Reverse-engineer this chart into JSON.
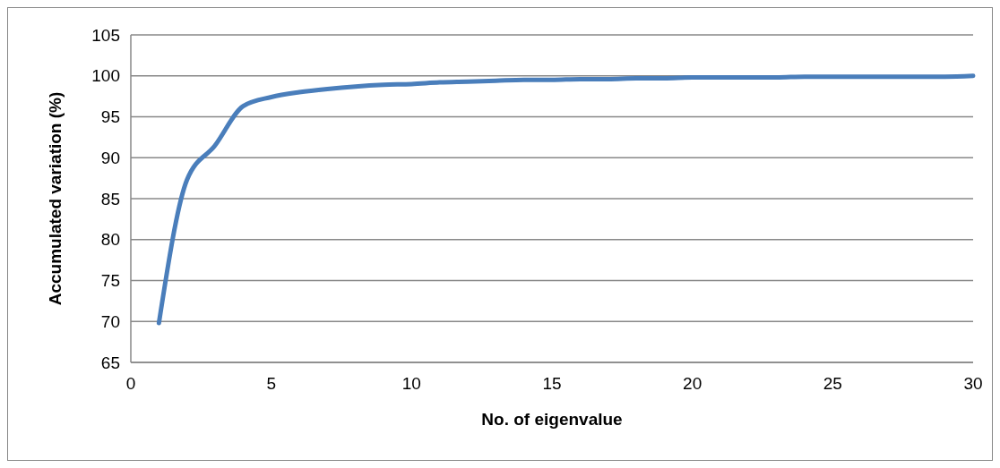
{
  "chart_data": {
    "type": "line",
    "xlabel": "No. of eigenvalue",
    "ylabel": "Accumulated variation (%)",
    "xlim": [
      0,
      30
    ],
    "xticks": [
      0,
      5,
      10,
      15,
      20,
      25,
      30
    ],
    "ylim": [
      65,
      105
    ],
    "yticks": [
      65,
      70,
      75,
      80,
      85,
      90,
      95,
      100,
      105
    ],
    "grid": "y",
    "x": [
      1,
      2,
      3,
      4,
      5,
      6,
      7,
      8,
      9,
      10,
      11,
      12,
      13,
      14,
      15,
      16,
      17,
      18,
      19,
      20,
      21,
      22,
      23,
      24,
      25,
      26,
      27,
      28,
      29,
      30
    ],
    "series": [
      {
        "color": "#4a7ebb",
        "values": [
          69.8,
          87.3,
          91.5,
          96.3,
          97.4,
          98.0,
          98.4,
          98.7,
          98.9,
          99.0,
          99.2,
          99.3,
          99.4,
          99.5,
          99.5,
          99.6,
          99.6,
          99.7,
          99.7,
          99.8,
          99.8,
          99.8,
          99.8,
          99.9,
          99.9,
          99.9,
          99.9,
          99.9,
          99.9,
          100.0
        ]
      }
    ]
  }
}
